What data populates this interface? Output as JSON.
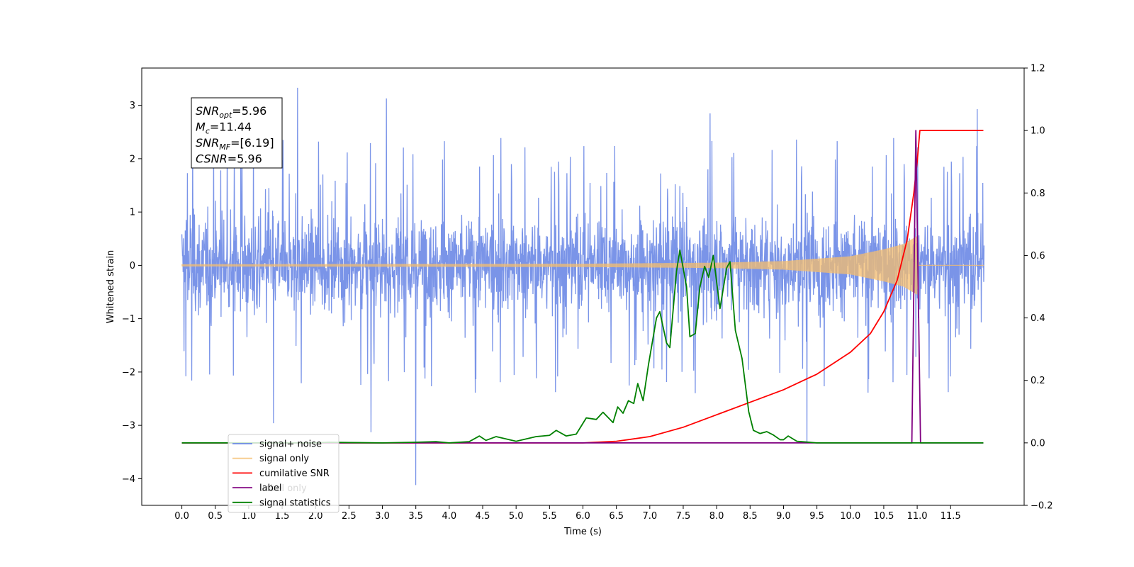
{
  "chart_data": {
    "type": "line",
    "xlabel": "Time (s)",
    "ylabel": "Whitened strain",
    "y2label": "",
    "xlim": [
      -0.6,
      12.6
    ],
    "ylim": [
      -4.5,
      3.7
    ],
    "y2lim": [
      -0.2,
      1.2
    ],
    "x_ticks": [
      0.0,
      0.5,
      1.0,
      1.5,
      2.0,
      2.5,
      3.0,
      3.5,
      4.0,
      4.5,
      5.0,
      5.5,
      6.0,
      6.5,
      7.0,
      7.5,
      8.0,
      8.5,
      9.0,
      9.5,
      10.0,
      10.5,
      11.0,
      11.5
    ],
    "x_tick_labels": [
      "0.0",
      "0.5",
      "1.0",
      "1.5",
      "2.0",
      "2.5",
      "3.0",
      "3.5",
      "4.0",
      "4.5",
      "5.0",
      "5.5",
      "6.0",
      "6.5",
      "7.0",
      "7.5",
      "8.0",
      "8.5",
      "9.0",
      "9.5",
      "10.0",
      "10.5",
      "11.0",
      "11.5"
    ],
    "y_ticks": [
      -4,
      -3,
      -2,
      -1,
      0,
      1,
      2,
      3
    ],
    "y_tick_labels": [
      "−4",
      "−3",
      "−2",
      "−1",
      "0",
      "1",
      "2",
      "3"
    ],
    "y2_ticks": [
      -0.2,
      0.0,
      0.2,
      0.4,
      0.6,
      0.8,
      1.0,
      1.2
    ],
    "y2_tick_labels": [
      "−0.2",
      "0.0",
      "0.2",
      "0.4",
      "0.6",
      "0.8",
      "1.0",
      "1.2"
    ],
    "grid": false,
    "legend_location": "lower-left",
    "annotation": {
      "lines": [
        {
          "sym": "SNR",
          "sub": "opt",
          "rest": "=5.96"
        },
        {
          "sym": "M",
          "sub": "c",
          "rest": "=11.44"
        },
        {
          "sym": "SNR",
          "sub": "MF",
          "rest": "=[6.19]"
        },
        {
          "sym": "CSNR",
          "sub": "",
          "rest": "=5.96"
        }
      ]
    },
    "series": [
      {
        "name": "signal+ noise",
        "axis": "left",
        "color": "#6b88e6",
        "style": "noise",
        "x_range": [
          0.0,
          12.0
        ],
        "envelope": 1.35,
        "spikes": [
          [
            1.73,
            3.33
          ],
          [
            1.37,
            -2.96
          ],
          [
            3.5,
            -4.12
          ],
          [
            2.83,
            -3.13
          ],
          [
            3.06,
            3.13
          ],
          [
            9.35,
            -3.32
          ],
          [
            11.9,
            2.93
          ],
          [
            0.16,
            2.28
          ],
          [
            7.9,
            2.85
          ]
        ]
      },
      {
        "name": "signal only",
        "axis": "left",
        "color": "#f5be6e",
        "style": "chirp",
        "x_range": [
          0.0,
          12.0
        ],
        "amp_points": [
          [
            0.0,
            0.02
          ],
          [
            6.0,
            0.03
          ],
          [
            8.0,
            0.05
          ],
          [
            9.0,
            0.08
          ],
          [
            10.0,
            0.17
          ],
          [
            10.5,
            0.3
          ],
          [
            10.8,
            0.4
          ],
          [
            11.0,
            0.55
          ],
          [
            11.02,
            0.0
          ],
          [
            12.0,
            0.0
          ]
        ]
      },
      {
        "name": "cumilative SNR",
        "axis": "right",
        "color": "#ff0000",
        "style": "line",
        "points": [
          [
            0.0,
            0.0
          ],
          [
            6.0,
            0.0
          ],
          [
            6.5,
            0.005
          ],
          [
            7.0,
            0.02
          ],
          [
            7.5,
            0.05
          ],
          [
            8.0,
            0.09
          ],
          [
            8.5,
            0.13
          ],
          [
            9.0,
            0.17
          ],
          [
            9.5,
            0.22
          ],
          [
            10.0,
            0.29
          ],
          [
            10.3,
            0.35
          ],
          [
            10.5,
            0.42
          ],
          [
            10.7,
            0.52
          ],
          [
            10.85,
            0.65
          ],
          [
            10.95,
            0.8
          ],
          [
            11.0,
            0.9
          ],
          [
            11.04,
            1.0
          ],
          [
            11.5,
            1.0
          ],
          [
            11.99,
            1.0
          ]
        ]
      },
      {
        "name": "label",
        "axis": "right",
        "color": "#800080",
        "style": "line",
        "points": [
          [
            0.0,
            0.0
          ],
          [
            10.92,
            0.0
          ],
          [
            10.98,
            1.0
          ],
          [
            11.05,
            0.0
          ],
          [
            11.99,
            0.0
          ]
        ]
      },
      {
        "name": "signal statistics",
        "axis": "right",
        "color": "#008000",
        "style": "line",
        "points": [
          [
            0.0,
            0.0
          ],
          [
            2.0,
            0.0
          ],
          [
            2.2,
            0.002
          ],
          [
            2.5,
            0.001
          ],
          [
            3.0,
            0.0
          ],
          [
            3.5,
            0.002
          ],
          [
            3.8,
            0.004
          ],
          [
            4.0,
            0.0
          ],
          [
            4.3,
            0.004
          ],
          [
            4.45,
            0.022
          ],
          [
            4.55,
            0.008
          ],
          [
            4.7,
            0.02
          ],
          [
            5.0,
            0.005
          ],
          [
            5.3,
            0.02
          ],
          [
            5.5,
            0.024
          ],
          [
            5.6,
            0.04
          ],
          [
            5.75,
            0.022
          ],
          [
            5.9,
            0.028
          ],
          [
            6.05,
            0.08
          ],
          [
            6.2,
            0.075
          ],
          [
            6.3,
            0.098
          ],
          [
            6.45,
            0.065
          ],
          [
            6.52,
            0.115
          ],
          [
            6.6,
            0.095
          ],
          [
            6.68,
            0.135
          ],
          [
            6.76,
            0.126
          ],
          [
            6.82,
            0.19
          ],
          [
            6.9,
            0.135
          ],
          [
            6.98,
            0.25
          ],
          [
            7.1,
            0.4
          ],
          [
            7.15,
            0.42
          ],
          [
            7.25,
            0.32
          ],
          [
            7.3,
            0.305
          ],
          [
            7.4,
            0.55
          ],
          [
            7.45,
            0.617
          ],
          [
            7.55,
            0.5
          ],
          [
            7.6,
            0.34
          ],
          [
            7.68,
            0.35
          ],
          [
            7.75,
            0.5
          ],
          [
            7.82,
            0.565
          ],
          [
            7.88,
            0.53
          ],
          [
            7.95,
            0.6
          ],
          [
            8.05,
            0.43
          ],
          [
            8.15,
            0.56
          ],
          [
            8.2,
            0.58
          ],
          [
            8.28,
            0.36
          ],
          [
            8.38,
            0.27
          ],
          [
            8.48,
            0.1
          ],
          [
            8.55,
            0.04
          ],
          [
            8.65,
            0.03
          ],
          [
            8.75,
            0.036
          ],
          [
            8.85,
            0.025
          ],
          [
            8.95,
            0.01
          ],
          [
            9.0,
            0.01
          ],
          [
            9.07,
            0.022
          ],
          [
            9.2,
            0.005
          ],
          [
            9.5,
            0.0
          ],
          [
            11.99,
            0.0
          ]
        ]
      }
    ],
    "legend": {
      "items": [
        {
          "name": "signal+ noise",
          "color": "#6b88e6"
        },
        {
          "name": "signal only",
          "color": "#f5be6e"
        },
        {
          "name": "cumilative SNR",
          "color": "#ff0000"
        },
        {
          "name": "label",
          "color": "#800080"
        },
        {
          "name": "signal statistics",
          "color": "#008000"
        }
      ],
      "ghost_text": "Label only"
    }
  }
}
